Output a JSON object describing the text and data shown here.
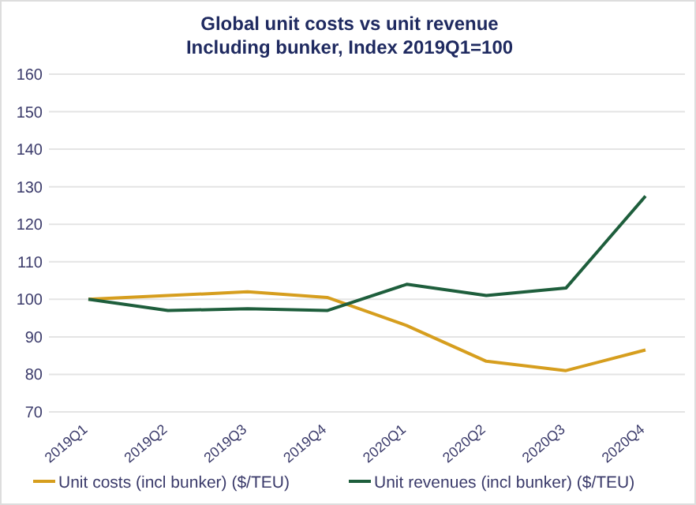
{
  "chart_data": {
    "type": "line",
    "title": "Global unit costs vs unit revenue",
    "subtitle": "Including bunker, Index 2019Q1=100",
    "categories": [
      "2019Q1",
      "2019Q2",
      "2019Q3",
      "2019Q4",
      "2020Q1",
      "2020Q2",
      "2020Q3",
      "2020Q4"
    ],
    "series": [
      {
        "name": "Unit costs (incl bunker) ($/TEU)",
        "color": "#d69e1e",
        "values": [
          100,
          101,
          102,
          100.5,
          93,
          83.5,
          81,
          86.5
        ]
      },
      {
        "name": "Unit revenues (incl bunker) ($/TEU)",
        "color": "#1e5e3c",
        "values": [
          100,
          97,
          97.5,
          97,
          104,
          101,
          103,
          127.5
        ]
      }
    ],
    "ylim": [
      70,
      160
    ],
    "yticks": [
      70,
      80,
      90,
      100,
      110,
      120,
      130,
      140,
      150,
      160
    ],
    "grid": "y",
    "legend": "bottom",
    "marker": "none",
    "line_style": "solid"
  }
}
